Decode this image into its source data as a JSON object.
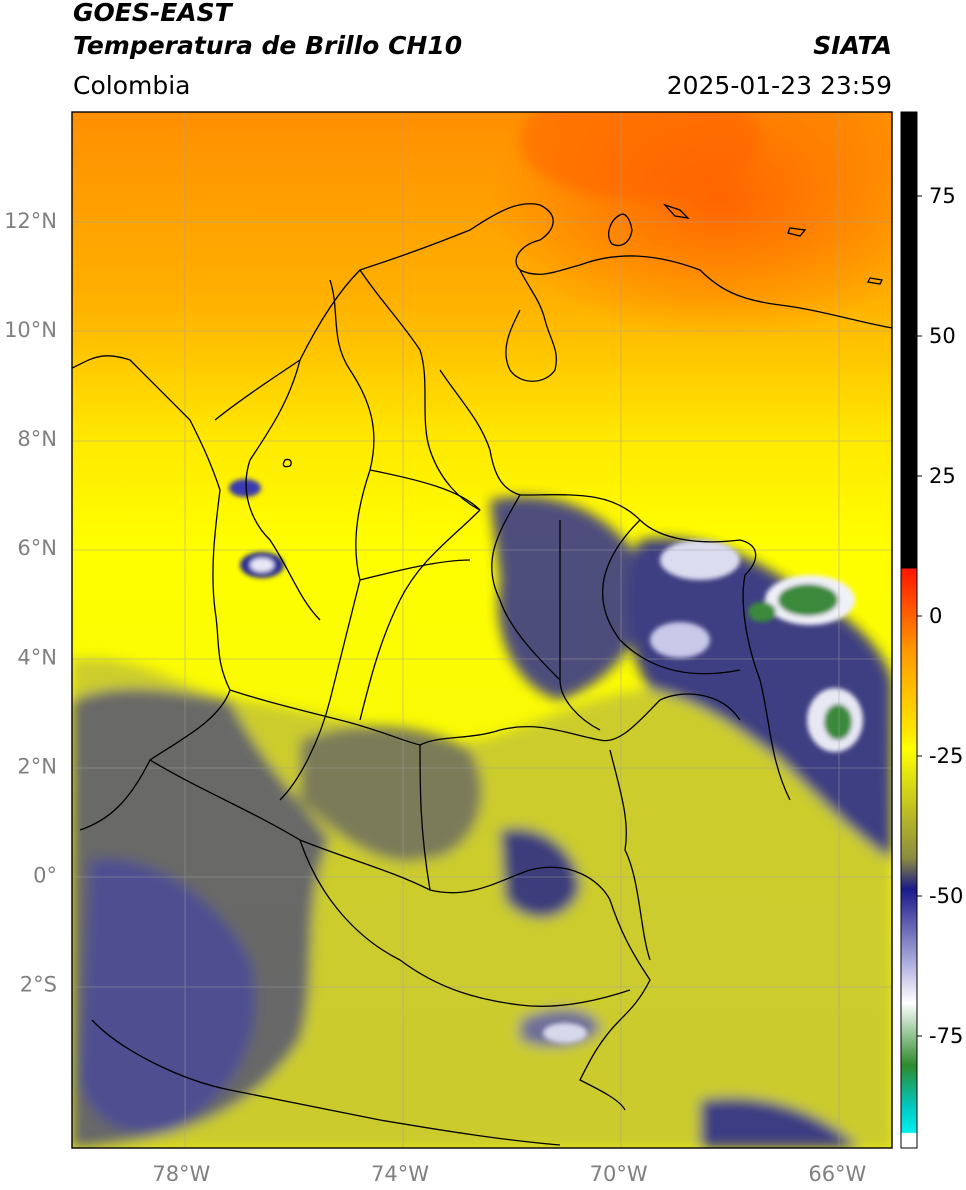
{
  "header": {
    "satellite": "GOES-EAST",
    "product": "Temperatura de Brillo CH10",
    "region": "Colombia",
    "source": "SIATA",
    "datetime": "2025-01-23 23:59"
  },
  "map": {
    "lat_labels": [
      "12°N",
      "10°N",
      "8°N",
      "6°N",
      "4°N",
      "2°N",
      "0°",
      "2°S"
    ],
    "lon_labels": [
      "78°W",
      "74°W",
      "70°W",
      "66°W"
    ],
    "lat_range": [
      -5,
      14
    ],
    "lon_range": [
      -80,
      -65
    ]
  },
  "colorbar": {
    "tick_labels": [
      "75",
      "50",
      "25",
      "0",
      "-25",
      "-50",
      "-75"
    ],
    "range": [
      -95,
      90
    ],
    "colors": {
      "warm": "#000000",
      "red": "#ff1500",
      "orange": "#ff9900",
      "yellow": "#ffff00",
      "olive": "#9c9c3a",
      "navy": "#1a1a8a",
      "white": "#ffffff",
      "green": "#2e8b2e",
      "cyan": "#00e0e0"
    }
  }
}
